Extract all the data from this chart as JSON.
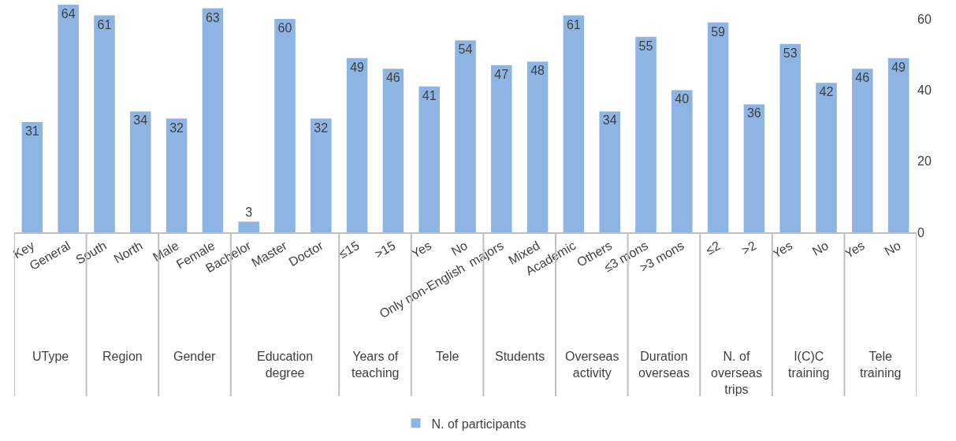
{
  "chart_data": {
    "type": "bar",
    "categories": [
      "Key",
      "General",
      "South",
      "North",
      "Male",
      "Female",
      "Bachelor",
      "Master",
      "Doctor",
      "≤15",
      ">15",
      "Yes",
      "No",
      "Only non-English  majors",
      "Mixed",
      "Academic",
      "Others",
      "≤3 mons",
      ">3 mons",
      "≤2",
      ">2",
      "Yes",
      "No",
      "Yes",
      "No"
    ],
    "series": [
      {
        "name": "N. of participants",
        "color": "#8db4e2",
        "values": [
          31,
          64,
          61,
          34,
          32,
          63,
          3,
          60,
          32,
          49,
          46,
          41,
          54,
          47,
          48,
          61,
          34,
          55,
          40,
          59,
          36,
          53,
          42,
          46,
          49
        ]
      }
    ],
    "annotations": [
      "UType",
      "Region",
      "Gender",
      "Education degree",
      "Years of teaching",
      "Tele",
      "Students",
      "Overseas activity",
      "Duration overseas",
      "N. of overseas trips",
      "I(C)C training",
      "Tele training"
    ],
    "ylim": [
      0,
      64
    ],
    "yticks": [
      0,
      20,
      40,
      60
    ],
    "data_labels": true,
    "grid": false,
    "legend": "bottom"
  }
}
